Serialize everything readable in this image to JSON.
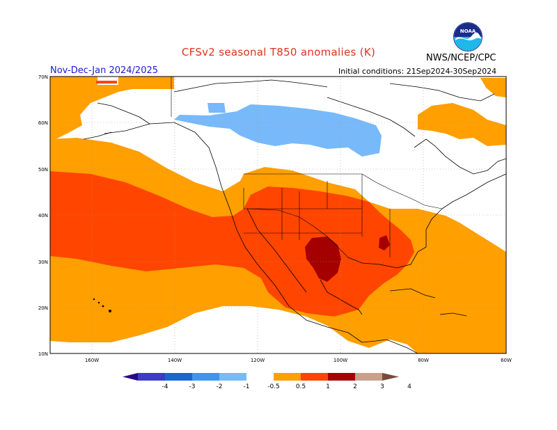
{
  "title": "CFSv2 seasonal T850 anomalies (K)",
  "season": "Nov-Dec-Jan 2024/2025",
  "initial_conditions": "Initial conditions: 21Sep2024-30Sep2024",
  "agency": "NWS/NCEP/CPC",
  "logo_text": "NOAA",
  "map": {
    "lat_labels": [
      "70N",
      "60N",
      "50N",
      "40N",
      "30N",
      "20N",
      "10N"
    ],
    "lon_labels": [
      "160W",
      "140W",
      "120W",
      "100W",
      "80W",
      "60W"
    ],
    "grid_lines": "dotted"
  },
  "legend": {
    "tick_labels": [
      "-4",
      "-3",
      "-2",
      "-1",
      "-0.5",
      "0.5",
      "1",
      "2",
      "3",
      "4"
    ],
    "bins": [
      {
        "range": "< -4",
        "color": "#2a0a8a"
      },
      {
        "range": "-4 to -3",
        "color": "#3c3cc8"
      },
      {
        "range": "-3 to -2",
        "color": "#1a66d0"
      },
      {
        "range": "-2 to -1",
        "color": "#3c96f0"
      },
      {
        "range": "-1 to -0.5",
        "color": "#78b9fa"
      },
      {
        "range": "-0.5 to 0.5",
        "color": "#ffffff"
      },
      {
        "range": "0.5 to 1",
        "color": "#ff9f00"
      },
      {
        "range": "1 to 2",
        "color": "#ff4500"
      },
      {
        "range": "2 to 3",
        "color": "#a50000"
      },
      {
        "range": "3 to 4",
        "color": "#c8a08c"
      },
      {
        "range": "> 4",
        "color": "#7a4a3a"
      }
    ]
  },
  "regions": [
    {
      "label": "Pacific and southern US anomaly",
      "category": "0.5 to 1"
    },
    {
      "label": "Central Pacific band and southwest US anomaly",
      "category": "1 to 2"
    },
    {
      "label": "Southern Plains core anomaly",
      "category": "2 to 3"
    },
    {
      "label": "Central Canada anomaly",
      "category": "-1 to -0.5"
    }
  ]
}
